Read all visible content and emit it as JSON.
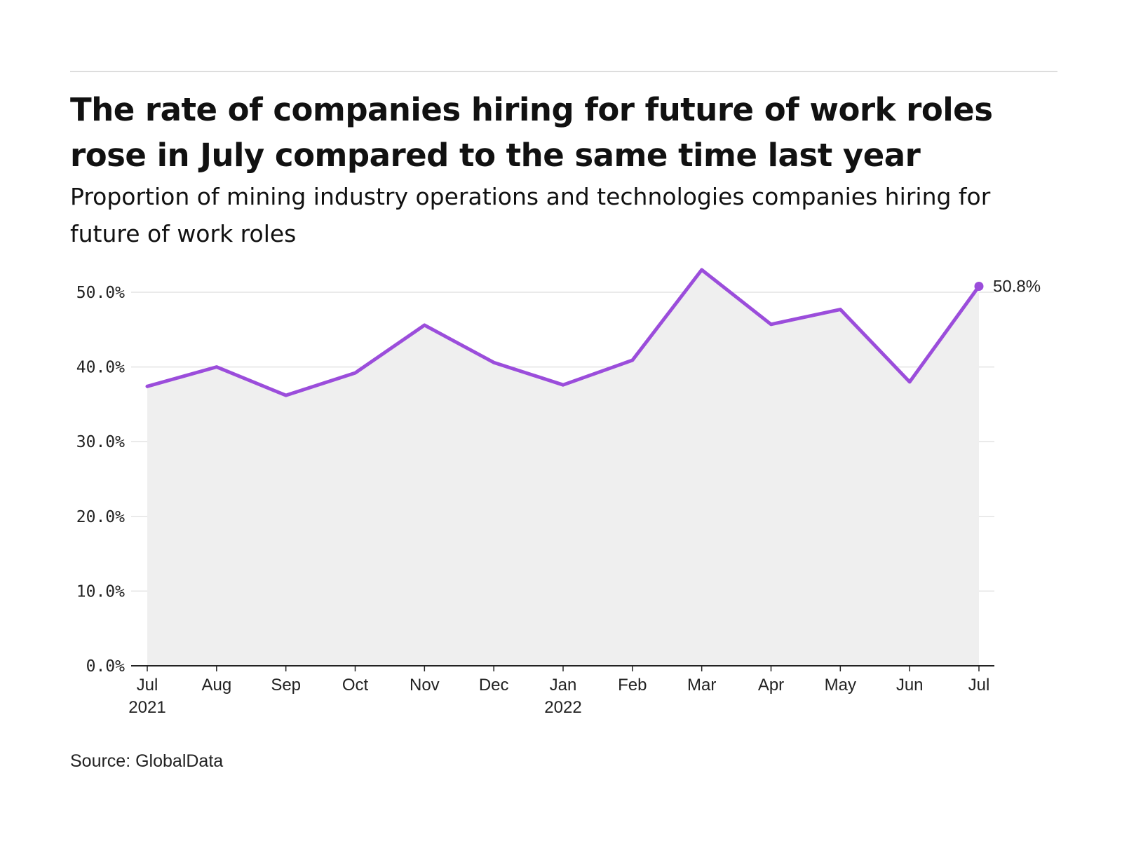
{
  "header": {
    "title": "The rate of companies hiring for future of work roles rose in July compared to the same time last year",
    "subtitle": "Proportion of mining industry operations and technologies companies hiring for future of work roles"
  },
  "footer": {
    "source": "Source: GlobalData"
  },
  "colors": {
    "line": "#9b4ddb",
    "area": "#efefef",
    "grid": "#e3e3e3",
    "axis": "#222222"
  },
  "chart_data": {
    "type": "area",
    "categories": [
      "Jul",
      "Aug",
      "Sep",
      "Oct",
      "Nov",
      "Dec",
      "Jan",
      "Feb",
      "Mar",
      "Apr",
      "May",
      "Jun",
      "Jul"
    ],
    "year_labels": [
      "2021",
      "",
      "",
      "",
      "",
      "",
      "2022",
      "",
      "",
      "",
      "",
      "",
      ""
    ],
    "series": [
      {
        "values": [
          37.4,
          40.0,
          36.2,
          39.2,
          45.6,
          40.6,
          37.6,
          40.9,
          53.0,
          45.7,
          47.7,
          38.0,
          50.8
        ]
      }
    ],
    "y_ticks": [
      "0.0%",
      "10.0%",
      "20.0%",
      "30.0%",
      "40.0%",
      "50.0%"
    ],
    "ylim": [
      0,
      55
    ],
    "end_label": "50.8%",
    "grid": true,
    "xlabel": "",
    "ylabel": ""
  }
}
